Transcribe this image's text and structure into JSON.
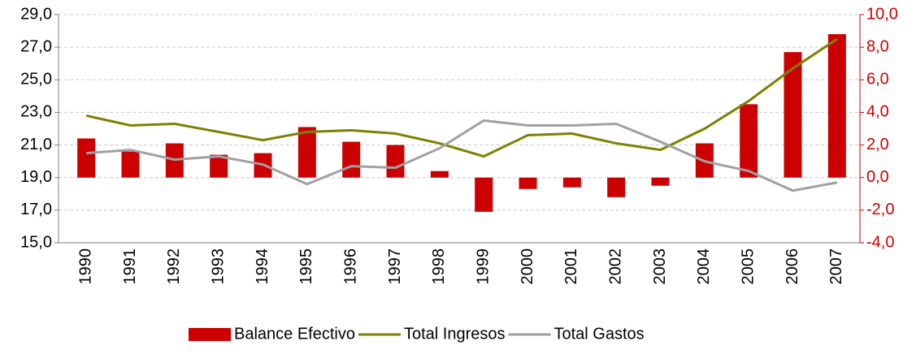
{
  "chart_data": {
    "type": "bar-line",
    "categories": [
      "1990",
      "1991",
      "1992",
      "1993",
      "1994",
      "1995",
      "1996",
      "1997",
      "1998",
      "1999",
      "2000",
      "2001",
      "2002",
      "2003",
      "2004",
      "2005",
      "2006",
      "2007"
    ],
    "series": [
      {
        "name": "Balance Efectivo",
        "type": "bar",
        "axis": "y2",
        "color": "#cc0000",
        "values": [
          2.4,
          1.6,
          2.1,
          1.4,
          1.5,
          3.1,
          2.2,
          2.0,
          0.4,
          -2.1,
          -0.7,
          -0.6,
          -1.2,
          -0.5,
          2.1,
          4.5,
          7.7,
          8.8
        ]
      },
      {
        "name": "Total Ingresos",
        "type": "line",
        "axis": "y",
        "color": "#808000",
        "values": [
          22.8,
          22.2,
          22.3,
          21.8,
          21.3,
          21.8,
          21.9,
          21.7,
          21.1,
          20.3,
          21.6,
          21.7,
          21.1,
          20.7,
          22.0,
          23.7,
          25.7,
          27.5
        ]
      },
      {
        "name": "Total Gastos",
        "type": "line",
        "axis": "y",
        "color": "#a0a0a0",
        "values": [
          20.5,
          20.7,
          20.1,
          20.3,
          19.8,
          18.6,
          19.7,
          19.6,
          20.8,
          22.5,
          22.2,
          22.2,
          22.3,
          21.2,
          20.0,
          19.4,
          18.2,
          18.7
        ]
      }
    ],
    "ylim": [
      15,
      29
    ],
    "yticks": [
      {
        "value": 15,
        "label": "15,0"
      },
      {
        "value": 17,
        "label": "17,0"
      },
      {
        "value": 19,
        "label": "19,0"
      },
      {
        "value": 21,
        "label": "21,0"
      },
      {
        "value": 23,
        "label": "23,0"
      },
      {
        "value": 25,
        "label": "25,0"
      },
      {
        "value": 27,
        "label": "27,0"
      },
      {
        "value": 29,
        "label": "29,0"
      }
    ],
    "y2lim": [
      -4,
      10
    ],
    "y2ticks": [
      {
        "value": -4,
        "label": "-4,0"
      },
      {
        "value": -2,
        "label": "-2,0"
      },
      {
        "value": 0,
        "label": "0,0"
      },
      {
        "value": 2,
        "label": "2,0"
      },
      {
        "value": 4,
        "label": "4,0"
      },
      {
        "value": 6,
        "label": "6,0"
      },
      {
        "value": 8,
        "label": "8,0"
      },
      {
        "value": 10,
        "label": "10,0"
      }
    ],
    "y2color": "#cc0000",
    "grid": true,
    "legend": "bottom"
  }
}
